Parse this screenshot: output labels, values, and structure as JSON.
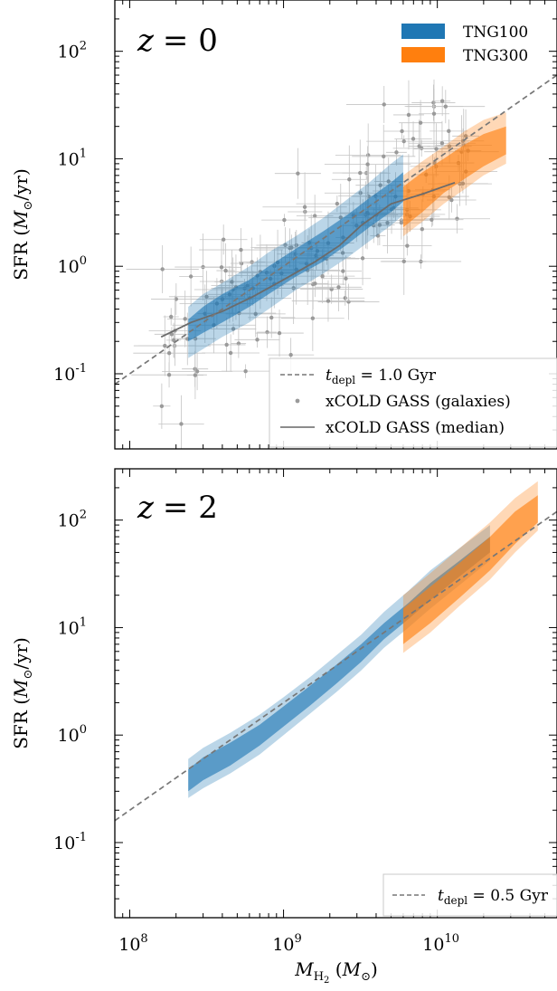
{
  "chart_data": [
    {
      "type": "line",
      "panel_label": "z = 0",
      "xlabel": "M_H2 (M⊙)",
      "ylabel": "SFR (M⊙/yr)",
      "xscale": "log",
      "yscale": "log",
      "xlim": [
        80000000,
        60000000000
      ],
      "ylim": [
        0.02,
        300
      ],
      "x_ticks": [
        100000000,
        1000000000,
        10000000000
      ],
      "x_tick_labels": [
        "10^8",
        "10^9",
        "10^10"
      ],
      "show_x_tick_labels": false,
      "y_ticks": [
        0.1,
        1,
        10,
        100
      ],
      "y_tick_labels": [
        "10^-1",
        "10^0",
        "10^1",
        "10^2"
      ],
      "grid": false,
      "bands": [
        {
          "name": "TNG100",
          "color": "#1f77b4",
          "x": [
            240000000,
            300000000,
            400000000,
            600000000,
            800000000,
            1200000000,
            1800000000,
            2600000000,
            3600000000,
            5000000000,
            6000000000
          ],
          "inner_low": [
            0.2,
            0.24,
            0.3,
            0.42,
            0.55,
            0.8,
            1.1,
            1.6,
            2.3,
            3.2,
            4.0
          ],
          "inner_high": [
            0.32,
            0.42,
            0.55,
            0.75,
            1.0,
            1.45,
            2.1,
            3.0,
            4.3,
            6.0,
            7.5
          ],
          "outer_low": [
            0.14,
            0.17,
            0.22,
            0.3,
            0.4,
            0.6,
            0.85,
            1.2,
            1.7,
            2.4,
            3.0
          ],
          "outer_high": [
            0.42,
            0.55,
            0.7,
            1.0,
            1.35,
            1.9,
            2.8,
            4.2,
            6.0,
            9.0,
            11.0
          ]
        },
        {
          "name": "TNG300",
          "color": "#ff7f0e",
          "x": [
            6000000000,
            8000000000,
            11000000000,
            15000000000,
            20000000000,
            28000000000
          ],
          "inner_low": [
            2.3,
            3.2,
            4.8,
            6.5,
            8.5,
            11.0
          ],
          "inner_high": [
            5.5,
            7.5,
            10.0,
            13.5,
            17.0,
            20.0
          ],
          "outer_low": [
            1.9,
            2.6,
            3.8,
            5.2,
            7.0,
            9.0
          ],
          "outer_high": [
            7.0,
            9.5,
            13.0,
            18.0,
            23.0,
            27.0
          ]
        }
      ],
      "reference_line": {
        "label": "t_depl = 1.0 Gyr",
        "depletion_time_gyr": 1.0
      },
      "xcold_median": {
        "label": "xCOLD GASS (median)",
        "x": [
          160000000,
          250000000,
          400000000,
          630000000,
          1000000000,
          1600000000,
          2300000000,
          3200000000,
          5000000000,
          8000000000,
          13000000000
        ],
        "y": [
          0.22,
          0.3,
          0.38,
          0.52,
          0.75,
          1.1,
          1.55,
          2.4,
          3.8,
          4.7,
          6.0
        ]
      },
      "xcold_galaxies_label": "xCOLD GASS (galaxies)",
      "legend_upper": [
        "TNG100",
        "TNG300"
      ],
      "legend_upper_placement": "top-right",
      "legend_lower_placement": "lower-right"
    },
    {
      "type": "line",
      "panel_label": "z = 2",
      "xlabel": "M_H2 (M⊙)",
      "ylabel": "SFR (M⊙/yr)",
      "xscale": "log",
      "yscale": "log",
      "xlim": [
        80000000,
        60000000000
      ],
      "ylim": [
        0.02,
        300
      ],
      "x_ticks": [
        100000000,
        1000000000,
        10000000000
      ],
      "x_tick_labels": [
        "10^8",
        "10^9",
        "10^10"
      ],
      "show_x_tick_labels": true,
      "y_ticks": [
        0.1,
        1,
        10,
        100
      ],
      "y_tick_labels": [
        "10^-1",
        "10^0",
        "10^1",
        "10^2"
      ],
      "grid": false,
      "bands": [
        {
          "name": "TNG100",
          "color": "#1f77b4",
          "x": [
            240000000,
            300000000,
            450000000,
            700000000,
            1000000000,
            1500000000,
            2200000000,
            3200000000,
            4500000000,
            6500000000,
            9000000000,
            14000000000,
            22000000000
          ],
          "inner_low": [
            0.3,
            0.38,
            0.52,
            0.8,
            1.2,
            1.9,
            3.0,
            4.8,
            7.8,
            12.0,
            18.0,
            30.0,
            50.0
          ],
          "inner_high": [
            0.48,
            0.62,
            0.85,
            1.25,
            1.85,
            2.9,
            4.5,
            7.0,
            11.0,
            17.0,
            26.0,
            42.0,
            70.0
          ],
          "outer_low": [
            0.26,
            0.32,
            0.44,
            0.66,
            1.0,
            1.6,
            2.5,
            4.0,
            6.5,
            10.0,
            15.0,
            25.0,
            42.0
          ],
          "outer_high": [
            0.6,
            0.76,
            1.05,
            1.55,
            2.25,
            3.5,
            5.5,
            8.6,
            14.0,
            22.0,
            34.0,
            55.0,
            90.0
          ]
        },
        {
          "name": "TNG300",
          "color": "#ff7f0e",
          "x": [
            6000000000,
            9000000000,
            14000000000,
            22000000000,
            32000000000,
            45000000000
          ],
          "inner_low": [
            7.0,
            11.0,
            19.0,
            34.0,
            60.0,
            95.0
          ],
          "inner_high": [
            15.0,
            24.0,
            40.0,
            70.0,
            120.0,
            170.0
          ],
          "outer_low": [
            5.8,
            9.0,
            16.0,
            28.0,
            50.0,
            80.0
          ],
          "outer_high": [
            20.0,
            32.0,
            55.0,
            95.0,
            160.0,
            230.0
          ]
        }
      ],
      "reference_line": {
        "label": "t_depl = 0.5 Gyr",
        "depletion_time_gyr": 0.5
      },
      "legend_lower_placement": "lower-right"
    }
  ]
}
